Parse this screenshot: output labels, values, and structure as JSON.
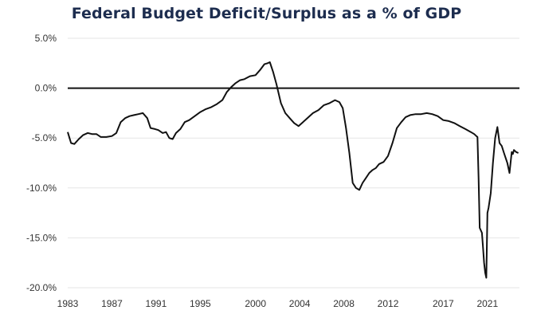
{
  "chart_data": {
    "type": "line",
    "title": "Federal Budget Deficit/Surplus as a % of GDP",
    "xlabel": "",
    "ylabel": "",
    "ylim": [
      -20,
      5
    ],
    "xlim": [
      1983,
      2023.9
    ],
    "y_ticks": [
      5,
      0,
      -5,
      -10,
      -15,
      -20
    ],
    "y_tick_labels": [
      "5.0%",
      "0.0%",
      "-5.0%",
      "-10.0%",
      "-15.0%",
      "-20.0%"
    ],
    "x_ticks": [
      1983,
      1987,
      1991,
      1995,
      2000,
      2004,
      2008,
      2012,
      2017,
      2021
    ],
    "x_tick_labels": [
      "1983",
      "1987",
      "1991",
      "1995",
      "2000",
      "2004",
      "2008",
      "2012",
      "2017",
      "2021"
    ],
    "grid": "horizontal",
    "legend": "none",
    "line_color": "#111111",
    "zero_line_color": "#111111",
    "series": [
      {
        "x": [
          1983.0,
          1983.3,
          1983.6,
          1984.0,
          1984.4,
          1984.8,
          1985.2,
          1985.6,
          1986.0,
          1986.5,
          1987.0,
          1987.4,
          1987.8,
          1988.2,
          1988.6,
          1989.0,
          1989.4,
          1989.8,
          1990.2,
          1990.5,
          1990.9,
          1991.2,
          1991.6,
          1991.9,
          1992.2,
          1992.5,
          1992.8,
          1993.2,
          1993.6,
          1994.0,
          1994.5,
          1995.0,
          1995.5,
          1996.0,
          1996.5,
          1997.0,
          1997.4,
          1997.8,
          1998.2,
          1998.6,
          1999.0,
          1999.5,
          2000.0,
          2000.4,
          2000.8,
          2001.1,
          2001.3,
          2001.6,
          2001.9,
          2002.3,
          2002.7,
          2003.1,
          2003.5,
          2003.9,
          2004.3,
          2004.7,
          2005.2,
          2005.7,
          2006.2,
          2006.7,
          2007.2,
          2007.6,
          2007.9,
          2008.2,
          2008.5,
          2008.8,
          2009.1,
          2009.4,
          2009.7,
          2010.0,
          2010.3,
          2010.6,
          2010.9,
          2011.2,
          2011.6,
          2012.0,
          2012.4,
          2012.8,
          2013.2,
          2013.6,
          2014.0,
          2014.5,
          2015.0,
          2015.5,
          2016.0,
          2016.5,
          2017.0,
          2017.5,
          2018.0,
          2018.5,
          2019.0,
          2019.5,
          2019.8,
          2020.0,
          2020.1,
          2020.2,
          2020.3,
          2020.5,
          2020.6,
          2020.7,
          2020.8,
          2020.9,
          2021.0,
          2021.1,
          2021.3,
          2021.5,
          2021.7,
          2021.9,
          2022.1,
          2022.3,
          2022.5,
          2022.8,
          2023.0,
          2023.2,
          2023.3,
          2023.4,
          2023.6,
          2023.8
        ],
        "y": [
          -4.4,
          -5.5,
          -5.6,
          -5.1,
          -4.7,
          -4.5,
          -4.6,
          -4.6,
          -4.9,
          -4.9,
          -4.8,
          -4.5,
          -3.4,
          -3.0,
          -2.8,
          -2.7,
          -2.6,
          -2.5,
          -3.0,
          -4.0,
          -4.1,
          -4.2,
          -4.5,
          -4.4,
          -5.0,
          -5.1,
          -4.5,
          -4.1,
          -3.4,
          -3.2,
          -2.8,
          -2.4,
          -2.1,
          -1.9,
          -1.6,
          -1.2,
          -0.4,
          0.1,
          0.5,
          0.8,
          0.9,
          1.2,
          1.3,
          1.8,
          2.4,
          2.5,
          2.6,
          1.6,
          0.4,
          -1.5,
          -2.5,
          -3.0,
          -3.5,
          -3.8,
          -3.4,
          -3.0,
          -2.5,
          -2.2,
          -1.7,
          -1.5,
          -1.2,
          -1.4,
          -2.0,
          -4.0,
          -6.5,
          -9.5,
          -10.0,
          -10.2,
          -9.5,
          -9.0,
          -8.5,
          -8.2,
          -8.0,
          -7.6,
          -7.4,
          -6.8,
          -5.5,
          -4.0,
          -3.4,
          -2.9,
          -2.7,
          -2.6,
          -2.6,
          -2.5,
          -2.6,
          -2.8,
          -3.2,
          -3.3,
          -3.5,
          -3.8,
          -4.1,
          -4.4,
          -4.6,
          -4.8,
          -4.9,
          -9.0,
          -14.0,
          -14.5,
          -16.0,
          -17.5,
          -18.5,
          -19.0,
          -12.5,
          -12.0,
          -10.5,
          -7.5,
          -5.0,
          -3.9,
          -5.5,
          -5.8,
          -6.5,
          -7.5,
          -8.5,
          -6.4,
          -6.6,
          -6.2,
          -6.4,
          -6.5
        ]
      }
    ]
  }
}
